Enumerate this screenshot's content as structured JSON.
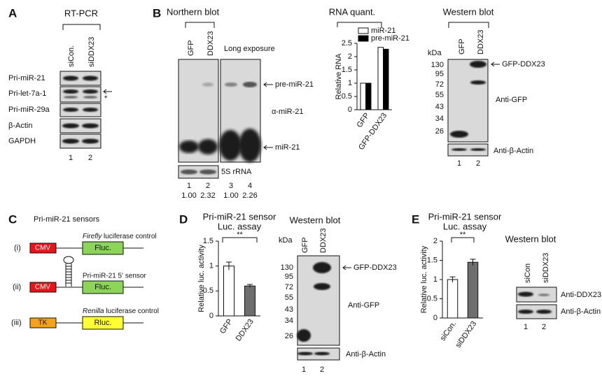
{
  "panels": {
    "A": {
      "label": "A",
      "title": "RT-PCR",
      "lanes": [
        "siCon.",
        "siDDX23"
      ],
      "rows": [
        "Pri-miR-21",
        "Pri-let-7a-1",
        "Pri-miR-29a",
        "β-Actin",
        "GAPDH"
      ],
      "asterisk": "*",
      "lane_numbers": [
        "1",
        "2"
      ]
    },
    "B": {
      "label": "B",
      "title": "Northern blot",
      "lanes": [
        "GFP",
        "DDX23"
      ],
      "long_exposure": "Long exposure",
      "probe": "α-miR-21",
      "bands": [
        "pre-miR-21",
        "miR-21"
      ],
      "loading": "5S rRNA",
      "lane_numbers": [
        "1",
        "2",
        "3",
        "4"
      ],
      "quant": [
        "1.00",
        "2.32",
        "1.00",
        "2.26"
      ]
    },
    "B_western": {
      "title": "Western blot",
      "lanes": [
        "GFP",
        "DDX23"
      ],
      "kda": "kDa",
      "markers": [
        "130",
        "95",
        "72",
        "55",
        "43",
        "34",
        "26"
      ],
      "band": "GFP-DDX23",
      "antibody": "Anti-GFP",
      "loading": "Anti-β-Actin",
      "lane_numbers": [
        "1",
        "2"
      ]
    },
    "C": {
      "label": "C",
      "title": "Pri-miR-21  sensors",
      "constructs": [
        {
          "index": "(i)",
          "promoter": "CMV",
          "reporter": "Fluc.",
          "note_italic": "Firefly",
          "note": " luciferase control"
        },
        {
          "index": "(ii)",
          "promoter": "CMV",
          "reporter": "Fluc.",
          "note": "Pri-miR-21  5′ sensor"
        },
        {
          "index": "(iii)",
          "promoter": "TK",
          "reporter": "Rluc.",
          "note_italic": "Renilla",
          "note": " luciferase control"
        }
      ]
    },
    "D": {
      "label": "D"
    },
    "D_western": {
      "title": "Western blot",
      "lanes": [
        "GFP",
        "DDX23"
      ],
      "kda": "kDa",
      "markers": [
        "130",
        "95",
        "72",
        "55",
        "43",
        "34",
        "26"
      ],
      "band": "GFP-DDX23",
      "antibody": "Anti-GFP",
      "loading": "Anti-β-Actin",
      "lane_numbers": [
        "1",
        "2"
      ]
    },
    "E": {
      "label": "E"
    },
    "E_western": {
      "title": "Western blot",
      "lanes": [
        "siCon",
        "siDDX23"
      ],
      "antibodies": [
        "Anti-DDX23",
        "Anti-β-Actin"
      ],
      "lane_numbers": [
        "1",
        "2"
      ]
    }
  },
  "chart_data": [
    {
      "type": "grouped_bar",
      "title": "RNA quant.",
      "y_label": "Relative RNA",
      "categories": [
        "GFP",
        "GFP-DDX23"
      ],
      "series": [
        {
          "name": "miR-21",
          "color": "#ffffff",
          "values": [
            1,
            2.35
          ]
        },
        {
          "name": "pre-miR-21",
          "color": "#000000",
          "values": [
            1,
            2.28
          ]
        }
      ],
      "ylim": [
        0,
        2.5
      ],
      "yticks": [
        0,
        0.5,
        1,
        1.5,
        2,
        2.5
      ]
    },
    {
      "type": "bar",
      "title": "Pri-miR-21 sensor",
      "subtitle": "Luc. assay",
      "y_label": "Relative luc. activity",
      "categories": [
        "GFP",
        "DDX23"
      ],
      "values": [
        1,
        0.6
      ],
      "errors": [
        0.08,
        0.03
      ],
      "colors": [
        "#ffffff",
        "#6e6e6e"
      ],
      "annotation": "**",
      "ylim": [
        0,
        1.5
      ],
      "yticks": [
        0,
        0.5,
        1,
        1.5
      ]
    },
    {
      "type": "bar",
      "title": "Pri-miR-21 sensor",
      "subtitle": "Luc. assay",
      "y_label": "Relative luc. activity",
      "categories": [
        "siCon.",
        "siDDX23"
      ],
      "values": [
        1,
        1.45
      ],
      "errors": [
        0.07,
        0.08
      ],
      "colors": [
        "#ffffff",
        "#6e6e6e"
      ],
      "annotation": "**",
      "ylim": [
        0,
        2
      ],
      "yticks": [
        0,
        0.5,
        1,
        1.5,
        2
      ]
    }
  ]
}
